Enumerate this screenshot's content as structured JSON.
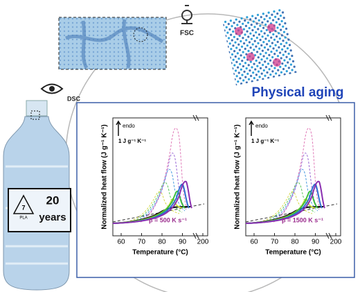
{
  "labels": {
    "fsc": "FSC",
    "dsc": "DSC",
    "title": "Physical aging"
  },
  "bottle": {
    "code": "7",
    "material": "PLA",
    "years_number": "20",
    "years_unit": "years"
  },
  "panels": [
    {
      "y_label": "Normalized heat flow (J g⁻¹ K⁻¹)",
      "x_label": "Temperature (°C)",
      "xticks": [
        "60",
        "70",
        "80",
        "90",
        "200"
      ],
      "endo": "endo",
      "scale": "1 J g⁻¹ K⁻¹",
      "rate": "β = 500 K s⁻¹"
    },
    {
      "y_label": "Normalized heat flow (J g⁻¹ K⁻¹)",
      "x_label": "Temperature (°C)",
      "xticks": [
        "60",
        "70",
        "80",
        "90",
        "200"
      ],
      "endo": "endo",
      "scale": "1 J g⁻¹ K⁻¹",
      "rate": "β = 1500 K s⁻¹"
    }
  ]
}
